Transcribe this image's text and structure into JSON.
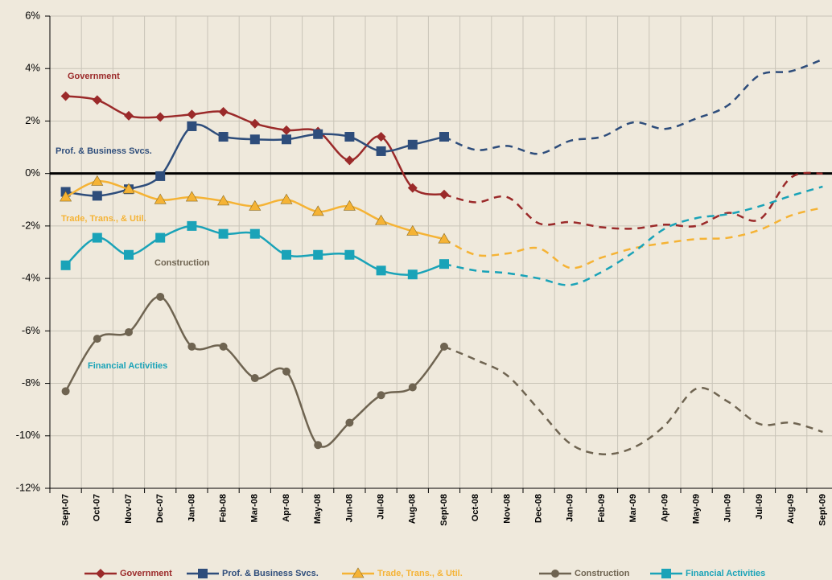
{
  "chart_data": {
    "type": "line",
    "categories": [
      "Sept-07",
      "Oct-07",
      "Nov-07",
      "Dec-07",
      "Jan-08",
      "Feb-08",
      "Mar-08",
      "Apr-08",
      "May-08",
      "Jun-08",
      "Jul-08",
      "Aug-08",
      "Sept-08",
      "Oct-08",
      "Nov-08",
      "Dec-08",
      "Jan-09",
      "Feb-09",
      "Mar-09",
      "Apr-09",
      "May-09",
      "Jun-09",
      "Jul-09",
      "Aug-09",
      "Sept-09"
    ],
    "ylim": [
      -12,
      6
    ],
    "yticks": [
      {
        "value": -12,
        "label": "-12%"
      },
      {
        "value": -10,
        "label": "-10%"
      },
      {
        "value": -8,
        "label": "-8%"
      },
      {
        "value": -6,
        "label": "-6%"
      },
      {
        "value": -4,
        "label": "-4%"
      },
      {
        "value": -2,
        "label": "-2%"
      },
      {
        "value": 0,
        "label": "0%"
      },
      {
        "value": 2,
        "label": "2%"
      },
      {
        "value": 4,
        "label": "4%"
      },
      {
        "value": 6,
        "label": "6%"
      }
    ],
    "grid": true,
    "series": [
      {
        "name": "Government",
        "color": "#9b2a2a",
        "marker": "diamond",
        "values": [
          2.95,
          2.8,
          2.2,
          2.15,
          2.25,
          2.35,
          1.9,
          1.65,
          1.6,
          0.5,
          1.4,
          -0.55,
          -0.8,
          null,
          null,
          null,
          null,
          null,
          null,
          null,
          null,
          null,
          null,
          null,
          null
        ],
        "forecast_values": [
          null,
          null,
          null,
          null,
          null,
          null,
          null,
          null,
          null,
          null,
          null,
          null,
          -0.8,
          -1.1,
          -0.9,
          -1.9,
          -1.85,
          -2.05,
          -2.1,
          -1.95,
          -2.0,
          -1.5,
          -1.75,
          -0.15,
          0.0
        ]
      },
      {
        "name": "Prof. & Business Svcs.",
        "color": "#2e4d7b",
        "marker": "square",
        "values": [
          -0.7,
          -0.85,
          -0.6,
          -0.1,
          1.8,
          1.4,
          1.3,
          1.3,
          1.5,
          1.4,
          0.85,
          1.1,
          1.4,
          null,
          null,
          null,
          null,
          null,
          null,
          null,
          null,
          null,
          null,
          null,
          null
        ],
        "forecast_values": [
          null,
          null,
          null,
          null,
          null,
          null,
          null,
          null,
          null,
          null,
          null,
          null,
          1.4,
          0.9,
          1.05,
          0.75,
          1.25,
          1.4,
          1.95,
          1.7,
          2.1,
          2.6,
          3.75,
          3.9,
          4.35
        ]
      },
      {
        "name": "Trade, Trans., & Util.",
        "color": "#f5b335",
        "marker": "triangle",
        "values": [
          -0.9,
          -0.3,
          -0.6,
          -1.0,
          -0.9,
          -1.05,
          -1.25,
          -1.0,
          -1.45,
          -1.25,
          -1.8,
          -2.2,
          -2.5,
          null,
          null,
          null,
          null,
          null,
          null,
          null,
          null,
          null,
          null,
          null,
          null
        ],
        "forecast_values": [
          null,
          null,
          null,
          null,
          null,
          null,
          null,
          null,
          null,
          null,
          null,
          null,
          -2.5,
          -3.1,
          -3.05,
          -2.85,
          -3.6,
          -3.2,
          -2.85,
          -2.65,
          -2.5,
          -2.45,
          -2.15,
          -1.6,
          -1.3
        ]
      },
      {
        "name": "Construction",
        "color": "#6f6451",
        "marker": "circle",
        "values": [
          -8.3,
          -6.3,
          -6.05,
          -4.7,
          -6.6,
          -6.6,
          -7.8,
          -7.55,
          -10.35,
          -9.5,
          -8.45,
          -8.15,
          -6.6,
          null,
          null,
          null,
          null,
          null,
          null,
          null,
          null,
          null,
          null,
          null,
          null
        ],
        "forecast_values": [
          null,
          null,
          null,
          null,
          null,
          null,
          null,
          null,
          null,
          null,
          null,
          null,
          -6.6,
          -7.1,
          -7.7,
          -9.0,
          -10.3,
          -10.7,
          -10.45,
          -9.6,
          -8.2,
          -8.7,
          -9.55,
          -9.5,
          -9.85
        ]
      },
      {
        "name": "Financial Activities",
        "color": "#1aa3b8",
        "marker": "square",
        "values": [
          -3.5,
          -2.45,
          -3.1,
          -2.45,
          -2.0,
          -2.3,
          -2.3,
          -3.1,
          -3.1,
          -3.1,
          -3.7,
          -3.85,
          -3.45,
          null,
          null,
          null,
          null,
          null,
          null,
          null,
          null,
          null,
          null,
          null,
          null
        ],
        "forecast_values": [
          null,
          null,
          null,
          null,
          null,
          null,
          null,
          null,
          null,
          null,
          null,
          null,
          -3.45,
          -3.7,
          -3.8,
          -4.0,
          -4.25,
          -3.75,
          -3.0,
          -2.1,
          -1.7,
          -1.55,
          -1.25,
          -0.85,
          -0.5
        ]
      }
    ]
  }
}
